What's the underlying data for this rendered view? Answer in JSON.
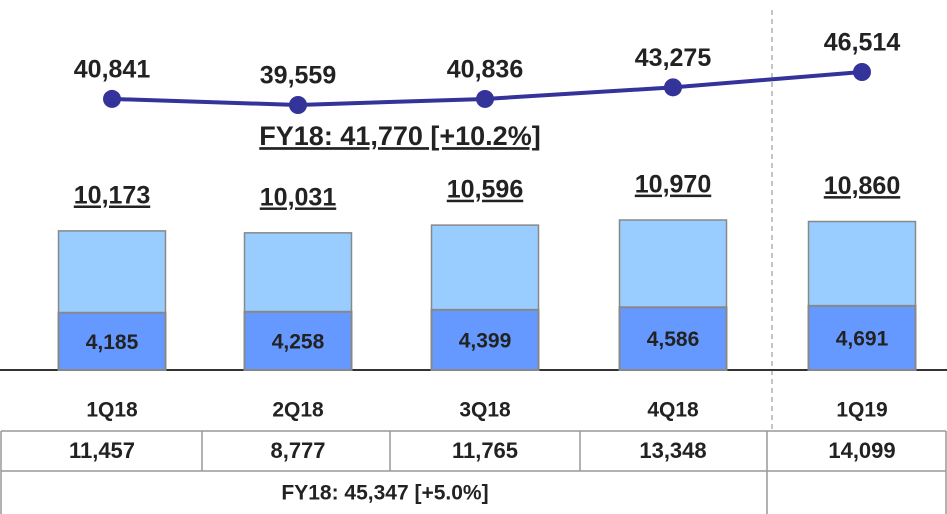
{
  "chart_data": {
    "type": "bar-line",
    "categories": [
      "1Q18",
      "2Q18",
      "3Q18",
      "4Q18",
      "1Q19"
    ],
    "line_values": [
      40841,
      39559,
      40836,
      43275,
      46514
    ],
    "line_value_labels": [
      "40,841",
      "39,559",
      "40,836",
      "43,275",
      "46,514"
    ],
    "line_color": "#333399",
    "line_annotation": "FY18: 41,770 [+10.2%]",
    "bar_totals": [
      10173,
      10031,
      10596,
      10970,
      10860
    ],
    "bar_total_labels": [
      "10,173",
      "10,031",
      "10,596",
      "10,970",
      "10,860"
    ],
    "bar_total_color": "#99ccff",
    "bar_parts": [
      4185,
      4258,
      4399,
      4586,
      4691
    ],
    "bar_part_labels": [
      "4,185",
      "4,258",
      "4,399",
      "4,586",
      "4,691"
    ],
    "bar_part_color": "#6699ff",
    "table_row": [
      "11,457",
      "8,777",
      "11,765",
      "13,348",
      "14,099"
    ],
    "table_footer": "FY18:  45,347 [+5.0%]"
  }
}
